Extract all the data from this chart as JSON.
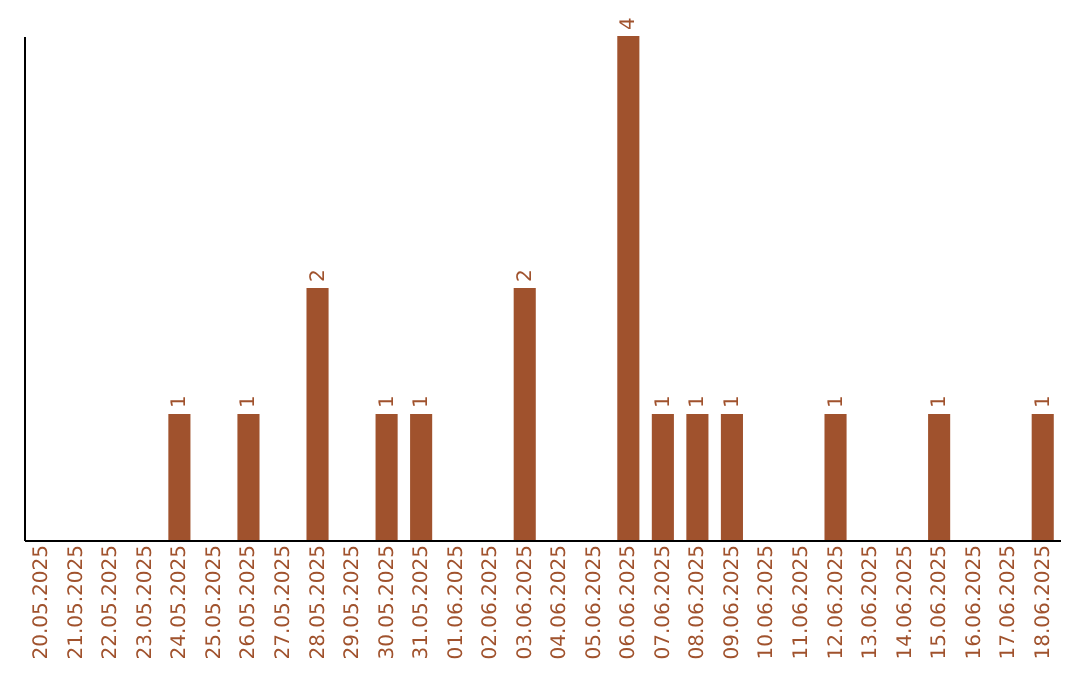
{
  "chart_data": {
    "type": "bar",
    "categories": [
      "20.05.2025",
      "21.05.2025",
      "22.05.2025",
      "23.05.2025",
      "24.05.2025",
      "25.05.2025",
      "26.05.2025",
      "27.05.2025",
      "28.05.2025",
      "29.05.2025",
      "30.05.2025",
      "31.05.2025",
      "01.06.2025",
      "02.06.2025",
      "03.06.2025",
      "04.06.2025",
      "05.06.2025",
      "06.06.2025",
      "07.06.2025",
      "08.06.2025",
      "09.06.2025",
      "10.06.2025",
      "11.06.2025",
      "12.06.2025",
      "13.06.2025",
      "14.06.2025",
      "15.06.2025",
      "16.06.2025",
      "17.06.2025",
      "18.06.2025"
    ],
    "values": [
      0,
      0,
      0,
      0,
      1,
      0,
      1,
      0,
      2,
      0,
      1,
      1,
      0,
      0,
      2,
      0,
      0,
      4,
      1,
      1,
      1,
      0,
      0,
      1,
      0,
      0,
      1,
      0,
      0,
      1
    ],
    "value_labels": [
      null,
      null,
      null,
      null,
      "1",
      null,
      "1",
      null,
      "2",
      null,
      "1",
      "1",
      null,
      null,
      "2",
      null,
      null,
      "4",
      "1",
      "1",
      "1",
      null,
      null,
      "1",
      null,
      null,
      "1",
      null,
      null,
      "1"
    ],
    "color": "#a0522d",
    "grid": false
  }
}
